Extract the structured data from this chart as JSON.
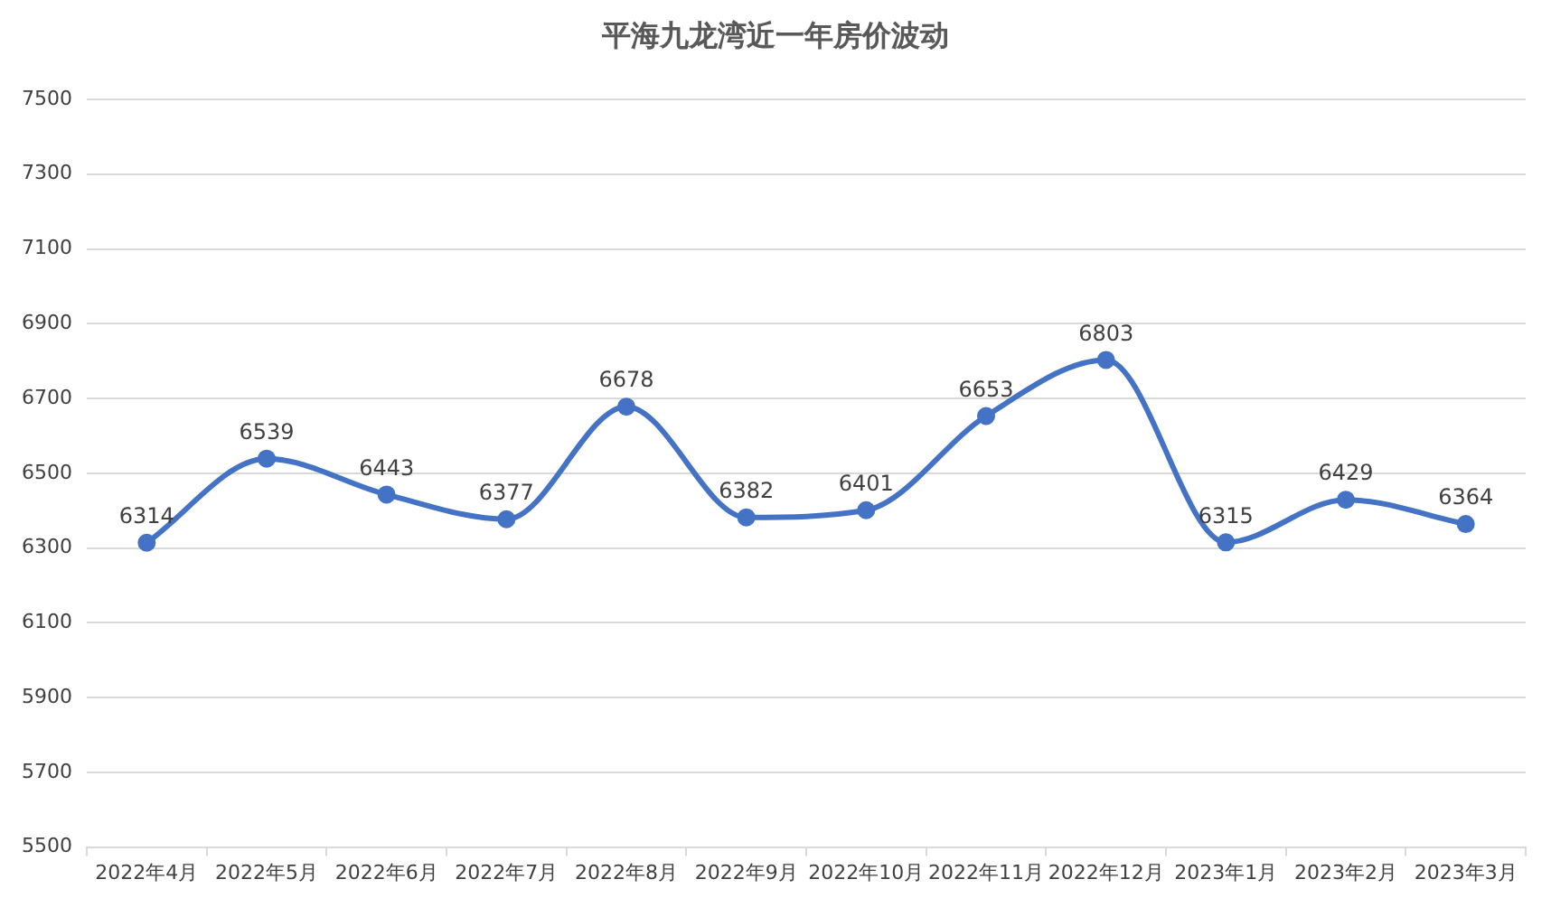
{
  "chart_data": {
    "type": "line",
    "title": "平海九龙湾近一年房价波动",
    "categories": [
      "2022年4月",
      "2022年5月",
      "2022年6月",
      "2022年7月",
      "2022年8月",
      "2022年9月",
      "2022年10月",
      "2022年11月",
      "2022年12月",
      "2023年1月",
      "2023年2月",
      "2023年3月"
    ],
    "series": [
      {
        "color": "#4472c4",
        "values": [
          6314,
          6539,
          6443,
          6377,
          6678,
          6382,
          6401,
          6653,
          6803,
          6315,
          6429,
          6364
        ]
      }
    ],
    "ylim": [
      5500,
      7500
    ],
    "yticks": [
      5500,
      5700,
      5900,
      6100,
      6300,
      6500,
      6700,
      6900,
      7100,
      7300,
      7500
    ],
    "grid": "y",
    "legend": false,
    "marker": "circle",
    "line_style": "solid",
    "data_labels": true
  }
}
